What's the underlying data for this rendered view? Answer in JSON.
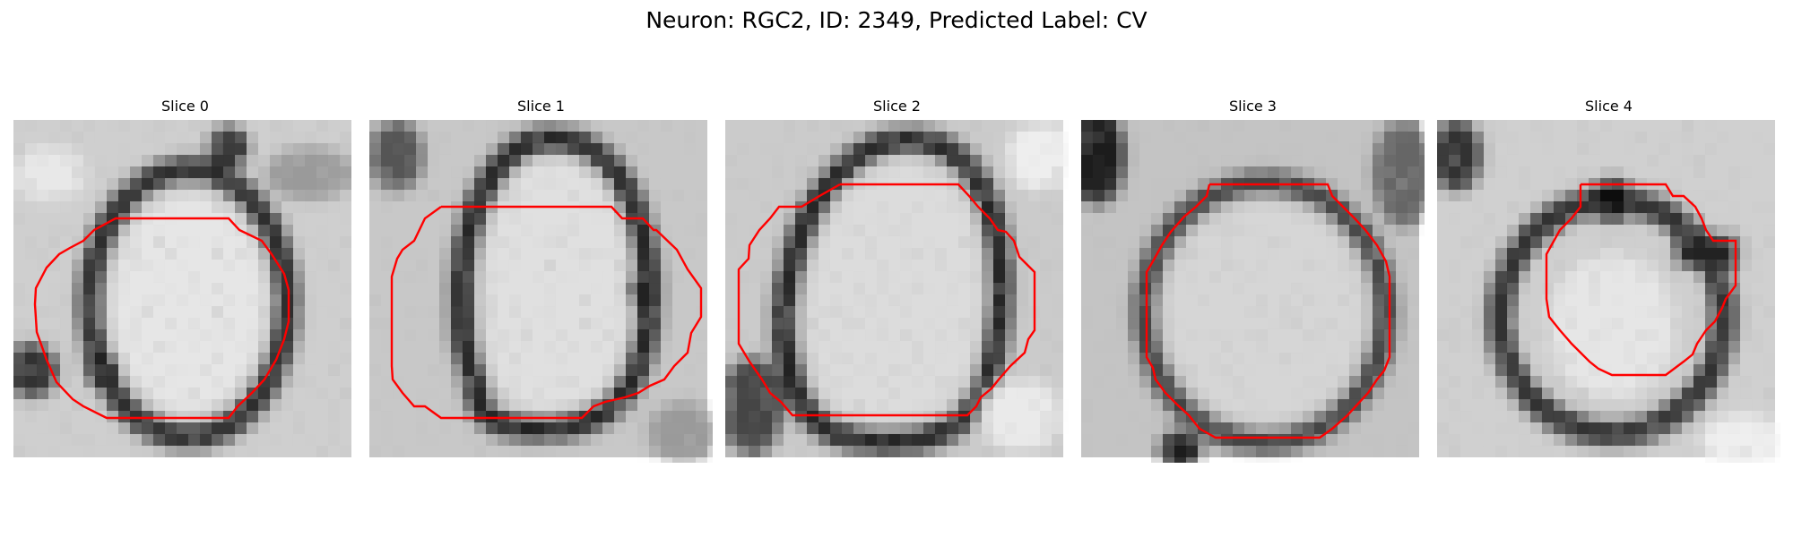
{
  "figure": {
    "title": "Neuron: RGC2, ID: 2349, Predicted Label: CV"
  },
  "panels": [
    {
      "title": "Slice 0"
    },
    {
      "title": "Slice 1"
    },
    {
      "title": "Slice 2"
    },
    {
      "title": "Slice 3"
    },
    {
      "title": "Slice 4"
    }
  ],
  "colors": {
    "contour": "#ff0000",
    "background": "#ffffff"
  }
}
